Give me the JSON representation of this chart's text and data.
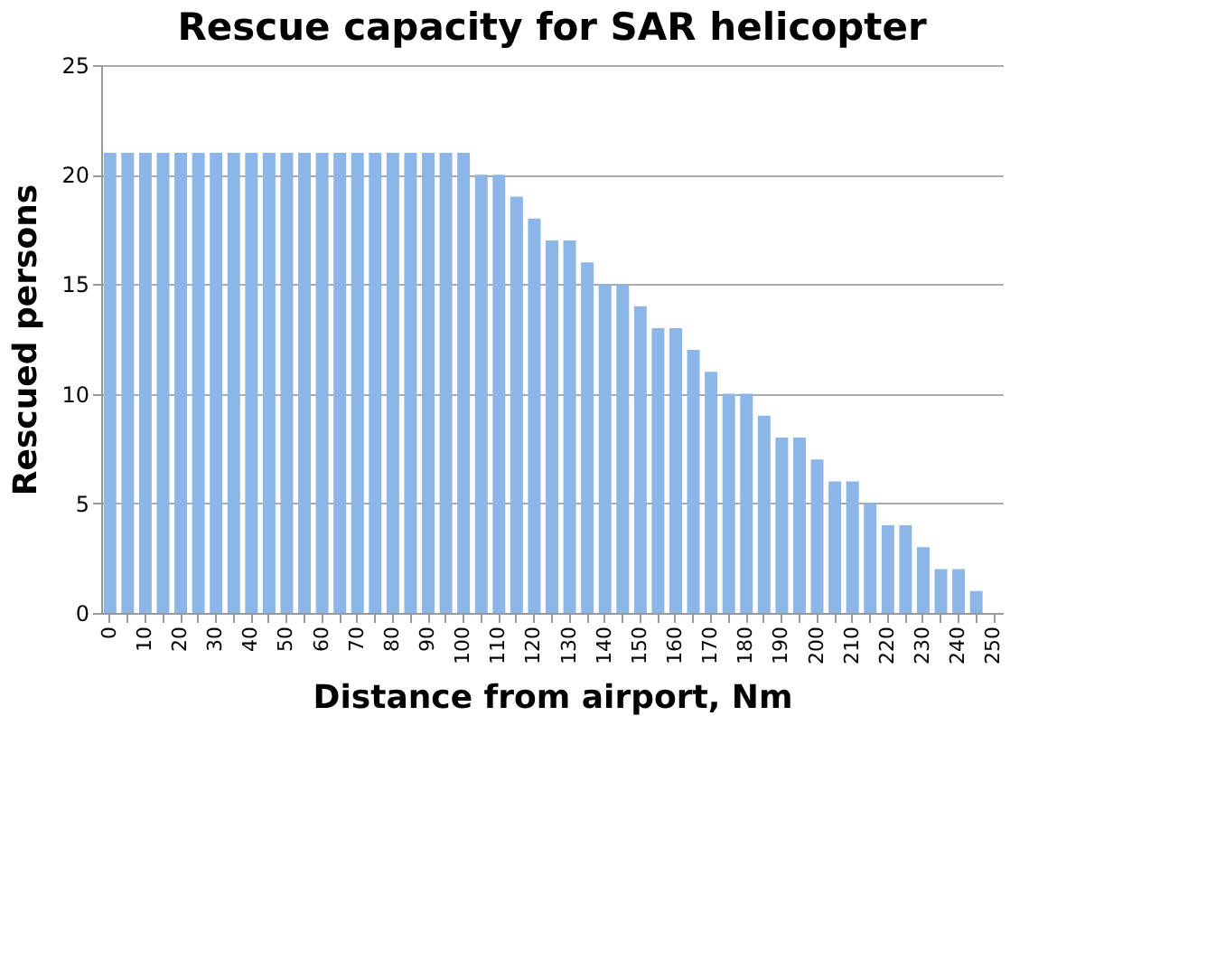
{
  "chart_data": {
    "type": "bar",
    "title": "Rescue capacity for SAR helicopter",
    "xlabel": "Distance from airport, Nm",
    "ylabel": "Rescued persons",
    "categories": [
      "0",
      null,
      "10",
      null,
      "20",
      null,
      "30",
      null,
      "40",
      null,
      "50",
      null,
      "60",
      null,
      "70",
      null,
      "80",
      null,
      "90",
      null,
      "100",
      null,
      "110",
      null,
      "120",
      null,
      "130",
      null,
      "140",
      null,
      "150",
      null,
      "160",
      null,
      "170",
      null,
      "180",
      null,
      "190",
      null,
      "200",
      null,
      "210",
      null,
      "220",
      null,
      "230",
      null,
      "240",
      null,
      "250"
    ],
    "values": [
      21,
      21,
      21,
      21,
      21,
      21,
      21,
      21,
      21,
      21,
      21,
      21,
      21,
      21,
      21,
      21,
      21,
      21,
      21,
      21,
      21,
      20,
      20,
      19,
      18,
      17,
      17,
      16,
      15,
      15,
      14,
      13,
      13,
      12,
      11,
      10,
      10,
      9,
      8,
      8,
      7,
      6,
      6,
      5,
      4,
      4,
      3,
      2,
      2,
      1,
      0
    ],
    "color": "#8db6e8",
    "ylim": [
      0,
      25
    ],
    "yticks": [
      0,
      5,
      10,
      15,
      20,
      25
    ],
    "grid": "y"
  }
}
